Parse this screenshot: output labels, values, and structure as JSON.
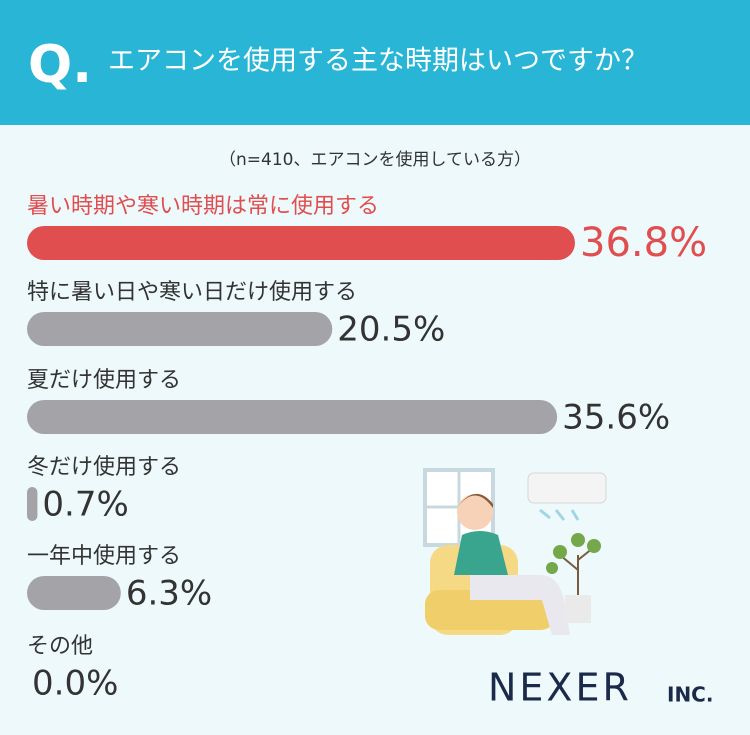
{
  "chart_data": {
    "type": "bar",
    "question_mark": "Q.",
    "title": "エアコンを使用する主な時期はいつですか？",
    "subtitle": "（n=410、エアコンを使用している方）",
    "categories": [
      "暑い時期や寒い時期は常に使用する",
      "特に暑い日や寒い日だけ使用する",
      "夏だけ使用する",
      "冬だけ使用する",
      "一年中使用する",
      "その他"
    ],
    "values": [
      36.8,
      20.5,
      35.6,
      0.7,
      6.3,
      0.0
    ],
    "value_labels": [
      "36.8%",
      "20.5%",
      "35.6%",
      "0.7%",
      "6.3%",
      "0.0%"
    ],
    "colors": [
      "#e04e50",
      "#a3a3a8",
      "#a3a3a8",
      "#a3a3a8",
      "#a3a3a8",
      "#a3a3a8"
    ],
    "label_colors": [
      "#e04e50",
      "#333333",
      "#333333",
      "#333333",
      "#333333",
      "#333333"
    ],
    "brand": "NEXER",
    "brand_suffix": "INC."
  }
}
